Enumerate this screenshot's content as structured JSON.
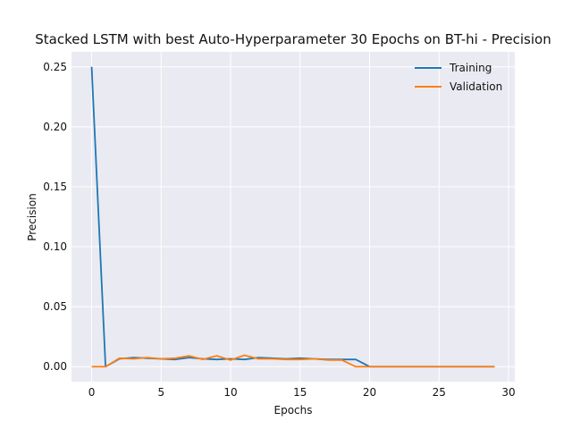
{
  "chart_data": {
    "type": "line",
    "title": "Stacked LSTM with best Auto-Hyperparameter 30 Epochs on BT-hi - Precision",
    "xlabel": "Epochs",
    "ylabel": "Precision",
    "xlim": [
      -1.45,
      30.45
    ],
    "ylim": [
      -0.0125,
      0.2625
    ],
    "xticks": [
      0,
      5,
      10,
      15,
      20,
      25,
      30
    ],
    "xtick_labels": [
      "0",
      "5",
      "10",
      "15",
      "20",
      "25",
      "30"
    ],
    "yticks": [
      0.0,
      0.05,
      0.1,
      0.15,
      0.2,
      0.25
    ],
    "ytick_labels": [
      "0.00",
      "0.05",
      "0.10",
      "0.15",
      "0.20",
      "0.25"
    ],
    "grid": true,
    "legend_position": "top-right",
    "x": [
      0,
      1,
      2,
      3,
      4,
      5,
      6,
      7,
      8,
      9,
      10,
      11,
      12,
      13,
      14,
      15,
      16,
      17,
      18,
      19,
      20,
      21,
      22,
      23,
      24,
      25,
      26,
      27,
      28,
      29
    ],
    "series": [
      {
        "name": "Training",
        "color": "#1f77b4",
        "values": [
          0.25,
          0.0,
          0.0065,
          0.0075,
          0.007,
          0.0065,
          0.006,
          0.0075,
          0.0065,
          0.006,
          0.0065,
          0.006,
          0.0075,
          0.007,
          0.0065,
          0.007,
          0.0065,
          0.006,
          0.006,
          0.006,
          0.0,
          0.0,
          0.0,
          0.0,
          0.0,
          0.0,
          0.0,
          0.0,
          0.0,
          0.0
        ]
      },
      {
        "name": "Validation",
        "color": "#ff7f0e",
        "values": [
          0.0,
          0.0,
          0.007,
          0.0065,
          0.0075,
          0.0065,
          0.007,
          0.009,
          0.006,
          0.009,
          0.0055,
          0.0095,
          0.0065,
          0.0065,
          0.006,
          0.006,
          0.0065,
          0.0055,
          0.0055,
          0.0,
          0.0,
          0.0,
          0.0,
          0.0,
          0.0,
          0.0,
          0.0,
          0.0,
          0.0,
          0.0
        ]
      }
    ]
  }
}
